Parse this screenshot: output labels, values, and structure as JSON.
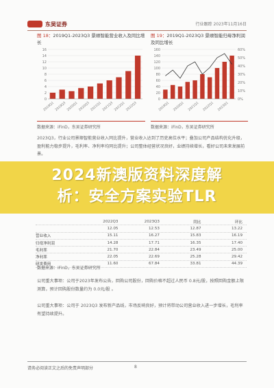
{
  "header": {
    "logo_text": "东吴证券",
    "right_text": "行业跟踪 2023年11月16日"
  },
  "banner": {
    "line1": "2024新澳版资料深度解",
    "line2": "析：安全方案实验TLR"
  },
  "figure_left": {
    "title_num": "图 18：",
    "title_text": "2019Q1-2023Q3 景顺智能营业收入及同比增长",
    "source": "数据来源：iFinD，东吴证券研究所"
  },
  "figure_right": {
    "title_num": "图 19：",
    "title_text": "2019Q1-2023Q3 景顺智能归母净利润及同比增长",
    "source": "数据来源：iFinD，东吴证券研究所"
  },
  "chart_data": [
    {
      "type": "bar",
      "categories": [
        "2019Q1",
        "2019Q3",
        "2020Q1",
        "2020Q3",
        "2021Q1",
        "2021Q3",
        "2022Q1",
        "2022Q3",
        "2023Q1",
        "2023Q3"
      ],
      "tick_labels": [
        "2019Q1",
        "2019Q3",
        "2020Q1",
        "2020Q3",
        "2021Q1",
        "2021Q3",
        "2022Q1",
        "2022Q3"
      ],
      "values": [
        2,
        3,
        2.5,
        3.5,
        4,
        5,
        6,
        7,
        9,
        14
      ],
      "ylim": [
        0,
        16
      ],
      "yticks": [
        0,
        2,
        4,
        6,
        8,
        10,
        12,
        14,
        16
      ],
      "colors": {
        "bar": "#c0392b"
      }
    },
    {
      "type": "bar",
      "categories": [
        "2019Q1",
        "2019Q3",
        "2020Q1",
        "2020Q3",
        "2021Q1",
        "2021Q3",
        "2022Q1",
        "2022Q3",
        "2023Q1",
        "2023Q3"
      ],
      "tick_labels": [
        "2019Q1",
        "2020Q1",
        "2021Q1",
        "2022Q1",
        "2023Q1"
      ],
      "values": [
        30,
        45,
        40,
        55,
        60,
        80,
        70,
        100,
        120,
        140
      ],
      "ylim": [
        0,
        160
      ],
      "yticks": [
        0,
        20,
        40,
        60,
        80,
        100,
        120,
        140,
        160
      ],
      "y2ticks": [
        "0%",
        "10%",
        "20%",
        "30%",
        "40%",
        "50%",
        "60%"
      ],
      "line": [
        28,
        35,
        25,
        40,
        45,
        30,
        38,
        50,
        55,
        42
      ],
      "colors": {
        "bar": "#c0392b",
        "line": "#333333"
      }
    }
  ],
  "paragraph1": "2023Q3，行业公司景顺智能营业收入同比提升，营业收入达到了历史高位水平；叠加公司产品结构优化升级，盈利能力稳步提升，毛利率、净利率均同比提升；公司整体经营状况良好，业绩持续增长，看好公司未来发展前景。",
  "table": {
    "rows": [
      [
        "",
        "2022Q3",
        "2023Q3",
        "同比",
        "环比"
      ],
      [
        "",
        "12.05",
        "12.53",
        "12.87",
        "13.22"
      ],
      [
        "营业收入",
        "15.11",
        "16.27",
        "15.83",
        "16.19"
      ],
      [
        "归母净利润",
        "14.28",
        "17.71",
        "16.35",
        "17.40"
      ],
      [
        "毛利率",
        "21.70",
        "22.84",
        "23.49",
        "25.00"
      ],
      [
        "净利率",
        "22.05",
        "22.69",
        "25.28",
        "29.42"
      ],
      [
        "研发费用",
        "11.60",
        "67.84",
        "33.81",
        "44.39"
      ]
    ],
    "source": "数据来源：iFinD，东吴证券研究所"
  },
  "note1": "公司重大事项：公司于2023年发布公告，回购公司股份，回购价格不超过人民币 0.8元/股，按照回购金额上限测算，预计回购股份数量约为 0.0元/股 。",
  "note2": "公司重大事项：公司于 2023Q3 发布新产品线，市场反响良好，预计将带动公司营业收入进一步增长，毛利率有望持续提升。",
  "footer": {
    "left": "请务必阅读正文之后的免责声明部分",
    "page": "8"
  }
}
